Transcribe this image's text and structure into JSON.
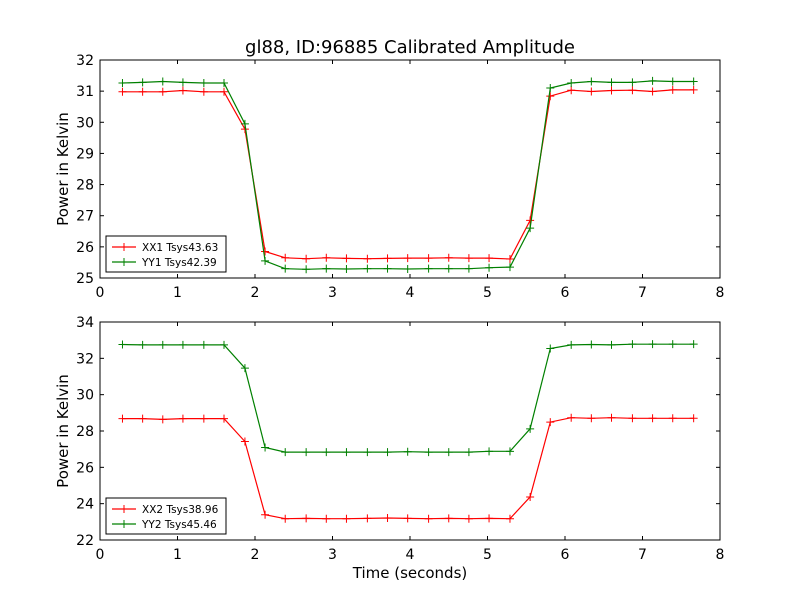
{
  "title": "gl88, ID:96885 Calibrated Amplitude",
  "colors": {
    "series1": "#ff0000",
    "series2": "#008000",
    "axes": "#000000"
  },
  "chart_data": [
    {
      "type": "line",
      "xlabel": "",
      "ylabel": "Power in Kelvin",
      "xlim": [
        0,
        8
      ],
      "ylim": [
        25,
        32
      ],
      "xticks": [
        0,
        1,
        2,
        3,
        4,
        5,
        6,
        7,
        8
      ],
      "yticks": [
        25,
        26,
        27,
        28,
        29,
        30,
        31,
        32
      ],
      "grid": false,
      "legend_position": "lower-left",
      "x": [
        0.29,
        0.55,
        0.81,
        1.07,
        1.34,
        1.6,
        1.87,
        2.13,
        2.39,
        2.66,
        2.92,
        3.18,
        3.45,
        3.71,
        3.97,
        4.24,
        4.5,
        4.76,
        5.02,
        5.29,
        5.55,
        5.81,
        6.08,
        6.34,
        6.6,
        6.87,
        7.13,
        7.39,
        7.66
      ],
      "series": [
        {
          "name": "XX1 Tsys43.63",
          "color": "#ff0000",
          "values": [
            30.98,
            30.98,
            30.98,
            31.02,
            30.98,
            30.98,
            29.78,
            25.85,
            25.65,
            25.62,
            25.65,
            25.63,
            25.62,
            25.63,
            25.64,
            25.64,
            25.65,
            25.64,
            25.64,
            25.61,
            26.85,
            30.84,
            31.03,
            30.99,
            31.02,
            31.03,
            30.99,
            31.04,
            31.04
          ]
        },
        {
          "name": "YY1 Tsys42.39",
          "color": "#008000",
          "values": [
            31.26,
            31.28,
            31.31,
            31.28,
            31.26,
            31.26,
            29.95,
            25.55,
            25.3,
            25.28,
            25.3,
            25.29,
            25.3,
            25.3,
            25.29,
            25.3,
            25.3,
            25.3,
            25.33,
            25.35,
            26.6,
            31.1,
            31.26,
            31.31,
            31.28,
            31.28,
            31.33,
            31.31,
            31.31
          ]
        }
      ]
    },
    {
      "type": "line",
      "xlabel": "Time (seconds)",
      "ylabel": "Power in Kelvin",
      "xlim": [
        0,
        8
      ],
      "ylim": [
        22,
        34
      ],
      "xticks": [
        0,
        1,
        2,
        3,
        4,
        5,
        6,
        7,
        8
      ],
      "yticks": [
        22,
        24,
        26,
        28,
        30,
        32,
        34
      ],
      "grid": false,
      "legend_position": "lower-left",
      "x": [
        0.29,
        0.55,
        0.81,
        1.07,
        1.34,
        1.6,
        1.87,
        2.13,
        2.39,
        2.66,
        2.92,
        3.18,
        3.45,
        3.71,
        3.97,
        4.24,
        4.5,
        4.76,
        5.02,
        5.29,
        5.55,
        5.81,
        6.08,
        6.34,
        6.6,
        6.87,
        7.13,
        7.39,
        7.66
      ],
      "series": [
        {
          "name": "XX2 Tsys38.96",
          "color": "#ff0000",
          "values": [
            28.68,
            28.68,
            28.64,
            28.68,
            28.68,
            28.68,
            27.42,
            23.39,
            23.17,
            23.19,
            23.17,
            23.17,
            23.19,
            23.21,
            23.19,
            23.17,
            23.19,
            23.17,
            23.19,
            23.17,
            24.37,
            28.49,
            28.73,
            28.7,
            28.73,
            28.7,
            28.7,
            28.7,
            28.7
          ]
        },
        {
          "name": "YY2 Tsys45.46",
          "color": "#008000",
          "values": [
            32.76,
            32.74,
            32.74,
            32.74,
            32.74,
            32.74,
            31.46,
            27.09,
            26.84,
            26.84,
            26.84,
            26.84,
            26.84,
            26.84,
            26.86,
            26.84,
            26.84,
            26.84,
            26.88,
            26.88,
            28.12,
            32.54,
            32.74,
            32.76,
            32.74,
            32.78,
            32.78,
            32.78,
            32.78
          ]
        }
      ]
    }
  ]
}
